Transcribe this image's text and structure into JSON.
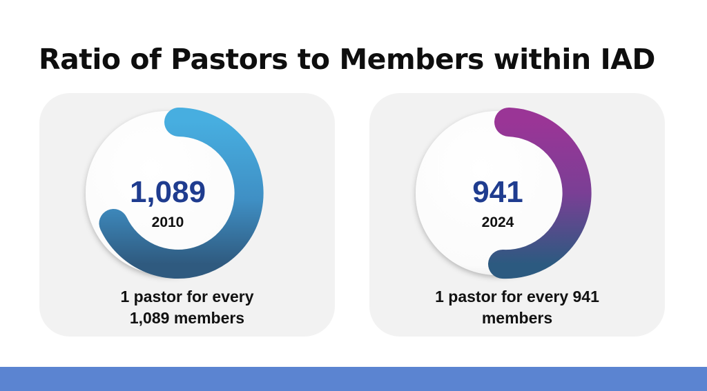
{
  "slide": {
    "title": "Ratio of Pastors to Members within IAD"
  },
  "cards": [
    {
      "value": "1,089",
      "year": "2010",
      "caption_line1": "1 pastor for every",
      "caption_line2": "1,089 members",
      "arc_start_color": "#47aee0",
      "arc_end_color": "#2f5a7f"
    },
    {
      "value": "941",
      "year": "2024",
      "caption_line1": "1 pastor for every 941",
      "caption_line2": "members",
      "arc_start_color": "#9a3596",
      "arc_end_color": "#2c5a80"
    }
  ],
  "colors": {
    "value_text": "#1f3c8f",
    "card_background": "#f2f2f2",
    "footer_bar": "#5b84d1"
  }
}
